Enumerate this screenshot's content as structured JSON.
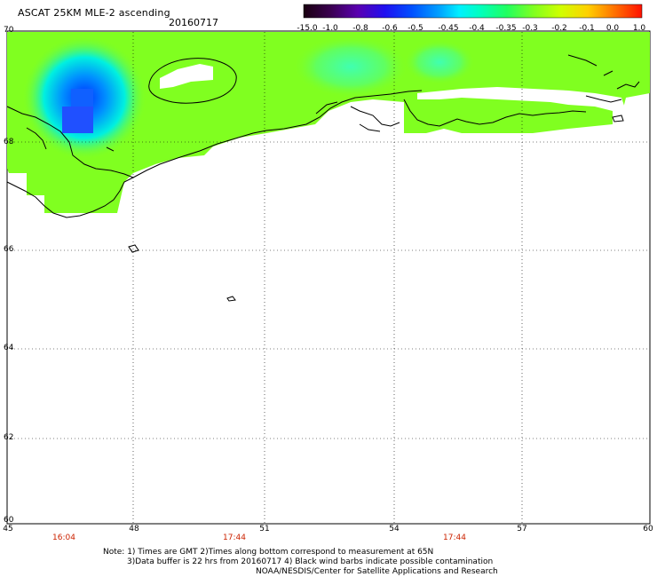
{
  "header": {
    "title": "ASCAT 25KM MLE-2 ascending",
    "date": "20160717"
  },
  "colorbar": {
    "labels": [
      "-15.0",
      "-1.0",
      "-0.8",
      "-0.6",
      "-0.5",
      "-0.45",
      "-0.4",
      "-0.35",
      "-0.3",
      "-0.2",
      "-0.1",
      "0.0",
      "1.0"
    ],
    "colors": [
      "#1a0010",
      "#3a0050",
      "#5a00a0",
      "#3a00e0",
      "#0040ff",
      "#0090ff",
      "#00d0ff",
      "#00ffe0",
      "#00ff90",
      "#40ff40",
      "#90ff20",
      "#c8ff00",
      "#ffff00",
      "#ffc000",
      "#ff8000",
      "#ff4000",
      "#ff0000"
    ]
  },
  "axes": {
    "lat_labels": [
      "70",
      "68",
      "66",
      "64",
      "62",
      "60"
    ],
    "lon_labels": [
      "45",
      "48",
      "51",
      "54",
      "57",
      "60"
    ],
    "time_labels": [
      "16:04",
      "17:44",
      "17:44"
    ]
  },
  "notes": {
    "line1": "Note: 1) Times are GMT 2)Times along bottom correspond to measurement at 65N",
    "line2": "3)Data buffer is 22 hrs from 20160717 4) Black wind barbs indicate possible contamination",
    "line3": "NOAA/NESDIS/Center for Satellite Applications and Research"
  },
  "colors": {
    "swath_fill": "#80ff20",
    "coast": "#000000",
    "time_text": "#cc2200"
  }
}
